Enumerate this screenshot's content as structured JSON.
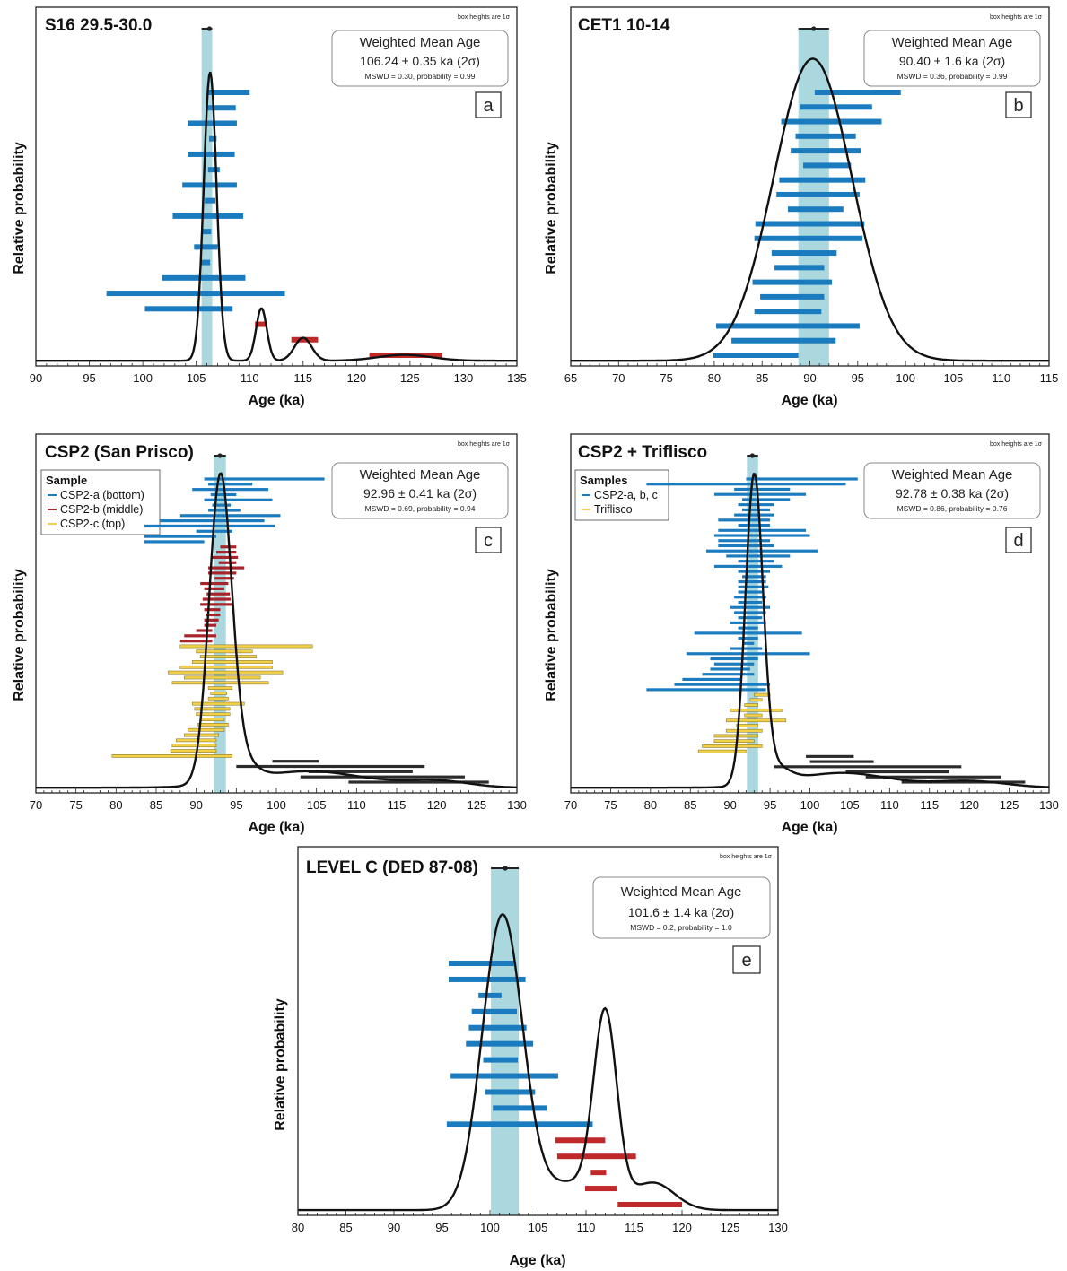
{
  "chart_data": [
    {
      "id": "a",
      "type": "scatter",
      "title": "S16 29.5-30.0",
      "box_note": "box heights are 1σ",
      "xlabel": "Age (ka)",
      "ylabel": "Relative probability",
      "xlim": [
        90,
        135
      ],
      "xticks": [
        90,
        95,
        100,
        105,
        110,
        115,
        120,
        125,
        130,
        135
      ],
      "weighted_mean": {
        "heading": "Weighted Mean Age",
        "value": "106.24 ± 0.35 ka (2σ)",
        "stats": "MSWD = 0.30, probability = 0.99",
        "center": 106.24,
        "band": [
          105.5,
          106.5
        ]
      },
      "panel_label": "a",
      "series": [
        {
          "color": "#1a7bbf",
          "intervals": [
            [
              106.0,
              110.0
            ],
            [
              106.0,
              108.7
            ],
            [
              104.2,
              108.8
            ],
            [
              106.2,
              106.9
            ],
            [
              104.2,
              108.6
            ],
            [
              106.1,
              107.2
            ],
            [
              103.7,
              108.8
            ],
            [
              105.8,
              106.8
            ],
            [
              102.8,
              109.4
            ],
            [
              105.5,
              106.4
            ],
            [
              104.8,
              107.0
            ],
            [
              105.4,
              106.3
            ],
            [
              101.8,
              109.6
            ],
            [
              96.6,
              113.3
            ],
            [
              100.2,
              108.4
            ]
          ]
        },
        {
          "color": "#c0292a",
          "intervals": [
            [
              110.5,
              111.6
            ],
            [
              113.9,
              116.4
            ],
            [
              121.2,
              128.0
            ]
          ]
        }
      ],
      "curve": {
        "baseline": 0.005,
        "peaks": [
          [
            106.3,
            0.6,
            0.88
          ],
          [
            111.1,
            0.5,
            0.16
          ],
          [
            115.0,
            0.8,
            0.07
          ],
          [
            124.5,
            2.5,
            0.018
          ]
        ]
      }
    },
    {
      "id": "b",
      "type": "scatter",
      "title": "CET1 10-14",
      "box_note": "box heights are 1σ",
      "xlabel": "Age (ka)",
      "ylabel": "Relative probability",
      "xlim": [
        65,
        115
      ],
      "xticks": [
        65,
        70,
        75,
        80,
        85,
        90,
        95,
        100,
        105,
        110,
        115
      ],
      "weighted_mean": {
        "heading": "Weighted Mean Age",
        "value": "90.40 ± 1.6 ka (2σ)",
        "stats": "MSWD = 0.36, probability = 0.99",
        "center": 90.4,
        "band": [
          88.8,
          92.0
        ]
      },
      "panel_label": "b",
      "series": [
        {
          "color": "#1a7bbf",
          "intervals": [
            [
              90.5,
              99.5
            ],
            [
              89.0,
              96.5
            ],
            [
              87.0,
              97.5
            ],
            [
              88.5,
              94.8
            ],
            [
              88.0,
              95.3
            ],
            [
              89.3,
              94.3
            ],
            [
              86.8,
              95.8
            ],
            [
              86.5,
              95.2
            ],
            [
              87.7,
              93.5
            ],
            [
              84.3,
              95.7
            ],
            [
              84.2,
              95.5
            ],
            [
              86.0,
              92.8
            ],
            [
              86.3,
              91.5
            ],
            [
              84.0,
              92.3
            ],
            [
              84.8,
              91.5
            ],
            [
              84.2,
              91.2
            ],
            [
              80.2,
              95.2
            ],
            [
              81.8,
              92.7
            ],
            [
              79.9,
              88.8
            ]
          ]
        }
      ],
      "curve": {
        "baseline": 0.005,
        "peaks": [
          [
            90.3,
            4.1,
            0.92
          ]
        ]
      }
    },
    {
      "id": "c",
      "type": "scatter",
      "title": "CSP2 (San Prisco)",
      "box_note": "box heights are 1σ",
      "xlabel": "Age (ka)",
      "ylabel": "Relative probability",
      "xlim": [
        70,
        130
      ],
      "xticks": [
        70,
        75,
        80,
        85,
        90,
        95,
        100,
        105,
        110,
        115,
        120,
        125,
        130
      ],
      "weighted_mean": {
        "heading": "Weighted Mean Age",
        "value": "92.96 ± 0.41 ka (2σ)",
        "stats": "MSWD = 0.69, probability = 0.94",
        "center": 92.96,
        "band": [
          92.2,
          93.7
        ]
      },
      "panel_label": "c",
      "legend": {
        "title": "Sample",
        "items": [
          "CSP2-a (bottom)",
          "CSP2-b (middle)",
          "CSP2-c (top)"
        ]
      },
      "series": [
        {
          "name": "CSP2-a (bottom)",
          "color": "#1a7bbf",
          "intervals": [
            [
              91.0,
              106.0
            ],
            [
              91.5,
              97.0
            ],
            [
              89.5,
              99.0
            ],
            [
              91.8,
              95.0
            ],
            [
              91.0,
              99.5
            ],
            [
              92.0,
              94.3
            ],
            [
              91.5,
              95.5
            ],
            [
              88.0,
              100.5
            ],
            [
              85.5,
              98.5
            ],
            [
              83.5,
              99.8
            ],
            [
              90.0,
              94.5
            ],
            [
              83.5,
              92.5
            ],
            [
              83.5,
              91.0
            ]
          ]
        },
        {
          "name": "CSP2-b (middle)",
          "color": "#a8242a",
          "intervals": [
            [
              93.0,
              95.0
            ],
            [
              92.5,
              95.0
            ],
            [
              92.0,
              95.2
            ],
            [
              92.8,
              95.0
            ],
            [
              91.5,
              96.0
            ],
            [
              91.5,
              95.0
            ],
            [
              92.3,
              94.7
            ],
            [
              90.5,
              94.0
            ],
            [
              91.0,
              93.5
            ],
            [
              91.3,
              94.2
            ],
            [
              90.8,
              94.3
            ],
            [
              90.5,
              94.5
            ],
            [
              91.0,
              93.0
            ],
            [
              91.2,
              93.0
            ],
            [
              91.0,
              92.8
            ],
            [
              91.0,
              92.5
            ],
            [
              90.0,
              92.0
            ],
            [
              88.5,
              92.5
            ],
            [
              88.0,
              92.0
            ]
          ]
        },
        {
          "name": "CSP2-c (top)",
          "color": "#f2d048",
          "intervals": [
            [
              88.0,
              104.5
            ],
            [
              90.0,
              97.0
            ],
            [
              90.5,
              97.5
            ],
            [
              89.5,
              99.5
            ],
            [
              88.0,
              99.5
            ],
            [
              86.5,
              100.8
            ],
            [
              88.5,
              98.0
            ],
            [
              87.0,
              99.0
            ],
            [
              91.5,
              94.5
            ],
            [
              91.8,
              93.8
            ],
            [
              91.5,
              94.0
            ],
            [
              89.5,
              96.0
            ],
            [
              89.8,
              94.2
            ],
            [
              90.0,
              94.2
            ],
            [
              90.5,
              93.5
            ],
            [
              90.2,
              94.0
            ],
            [
              89.0,
              93.5
            ],
            [
              88.5,
              92.8
            ],
            [
              87.5,
              92.5
            ],
            [
              87.0,
              92.5
            ],
            [
              86.8,
              92.5
            ],
            [
              79.5,
              94.5
            ]
          ]
        },
        {
          "name": "",
          "color": "#2b2b2b",
          "intervals": [
            [
              99.5,
              105.3
            ],
            [
              95.0,
              118.5
            ],
            [
              104.0,
              117.0
            ],
            [
              103.0,
              123.5
            ],
            [
              109.0,
              126.5
            ]
          ]
        }
      ],
      "curve": {
        "baseline": 0.005,
        "peaks": [
          [
            93.0,
            1.4,
            0.92
          ],
          [
            95.5,
            1.8,
            0.06
          ],
          [
            104.0,
            7.0,
            0.05
          ],
          [
            120.0,
            4.0,
            0.02
          ]
        ]
      }
    },
    {
      "id": "d",
      "type": "scatter",
      "title": "CSP2 + Triflisco",
      "box_note": "box heights are 1σ",
      "xlabel": "Age (ka)",
      "ylabel": "Relative probability",
      "xlim": [
        70,
        130
      ],
      "xticks": [
        70,
        75,
        80,
        85,
        90,
        95,
        100,
        105,
        110,
        115,
        120,
        125,
        130
      ],
      "weighted_mean": {
        "heading": "Weighted Mean Age",
        "value": "92.78 ± 0.38 ka (2σ)",
        "stats": "MSWD = 0.86, probability = 0.76",
        "center": 92.78,
        "band": [
          92.1,
          93.5
        ]
      },
      "panel_label": "d",
      "legend": {
        "title": "Samples",
        "items": [
          "CSP2-a, b, c",
          "Triflisco"
        ]
      },
      "series": [
        {
          "name": "CSP2-a, b, c",
          "color": "#1a7bbf",
          "intervals": [
            [
              92.0,
              106.0
            ],
            [
              79.5,
              104.5
            ],
            [
              90.5,
              97.5
            ],
            [
              88.0,
              99.5
            ],
            [
              91.5,
              97.5
            ],
            [
              91.0,
              95.5
            ],
            [
              91.5,
              95.0
            ],
            [
              90.5,
              95.5
            ],
            [
              88.5,
              95.0
            ],
            [
              91.0,
              95.0
            ],
            [
              88.5,
              99.5
            ],
            [
              88.0,
              100.0
            ],
            [
              88.5,
              95.0
            ],
            [
              88.5,
              95.5
            ],
            [
              87.0,
              101.0
            ],
            [
              89.5,
              97.5
            ],
            [
              91.0,
              95.5
            ],
            [
              88.0,
              96.5
            ],
            [
              91.0,
              95.0
            ],
            [
              91.5,
              94.5
            ],
            [
              91.0,
              94.5
            ],
            [
              91.0,
              94.8
            ],
            [
              91.0,
              94.0
            ],
            [
              90.5,
              94.5
            ],
            [
              91.0,
              94.0
            ],
            [
              90.0,
              95.0
            ],
            [
              90.5,
              94.5
            ],
            [
              91.0,
              94.0
            ],
            [
              90.0,
              94.5
            ],
            [
              91.0,
              93.5
            ],
            [
              85.5,
              99.0
            ],
            [
              91.0,
              93.5
            ],
            [
              91.5,
              93.0
            ],
            [
              90.0,
              94.0
            ],
            [
              84.5,
              100.0
            ],
            [
              87.5,
              93.5
            ],
            [
              88.0,
              93.0
            ],
            [
              87.5,
              92.5
            ],
            [
              86.5,
              93.0
            ],
            [
              84.0,
              91.5
            ],
            [
              83.0,
              95.0
            ],
            [
              79.5,
              94.5
            ]
          ]
        },
        {
          "name": "Triflisco",
          "color": "#f2d048",
          "intervals": [
            [
              93.0,
              95.0
            ],
            [
              92.5,
              94.0
            ],
            [
              91.8,
              93.5
            ],
            [
              90.0,
              96.5
            ],
            [
              91.8,
              94.0
            ],
            [
              89.5,
              97.0
            ],
            [
              90.8,
              93.5
            ],
            [
              89.5,
              94.0
            ],
            [
              88.0,
              93.5
            ],
            [
              88.0,
              93.0
            ],
            [
              86.5,
              94.0
            ],
            [
              86.0,
              92.0
            ]
          ]
        },
        {
          "name": "",
          "color": "#2b2b2b",
          "intervals": [
            [
              99.5,
              105.5
            ],
            [
              100.0,
              108.0
            ],
            [
              95.5,
              119.0
            ],
            [
              104.5,
              117.5
            ],
            [
              107.0,
              124.0
            ],
            [
              111.5,
              127.0
            ]
          ]
        }
      ],
      "curve": {
        "baseline": 0.005,
        "peaks": [
          [
            93.0,
            1.1,
            0.93
          ],
          [
            95.5,
            1.8,
            0.05
          ],
          [
            104.0,
            6.0,
            0.045
          ],
          [
            120.0,
            4.5,
            0.02
          ]
        ]
      }
    },
    {
      "id": "e",
      "type": "scatter",
      "title": "LEVEL C (DED 87-08)",
      "box_note": "box heights are 1σ",
      "xlabel": "Age (ka)",
      "ylabel": "Relative probability",
      "xlim": [
        80,
        130
      ],
      "xticks": [
        80,
        85,
        90,
        95,
        100,
        105,
        110,
        115,
        120,
        125,
        130
      ],
      "weighted_mean": {
        "heading": "Weighted Mean Age",
        "value": "101.6 ± 1.4 ka (2σ)",
        "stats": "MSWD = 0.2, probability = 1.0",
        "center": 101.6,
        "band": [
          100.1,
          103.0
        ]
      },
      "panel_label": "e",
      "series": [
        {
          "color": "#1a7bbf",
          "intervals": [
            [
              95.7,
              102.5
            ],
            [
              95.7,
              103.7
            ],
            [
              98.8,
              101.2
            ],
            [
              98.1,
              102.8
            ],
            [
              97.8,
              103.8
            ],
            [
              97.5,
              104.5
            ],
            [
              99.3,
              102.9
            ],
            [
              95.9,
              107.1
            ],
            [
              99.5,
              104.7
            ],
            [
              100.3,
              105.9
            ],
            [
              95.5,
              110.7
            ]
          ]
        },
        {
          "color": "#c0292a",
          "intervals": [
            [
              106.8,
              112.0
            ],
            [
              107.0,
              115.2
            ],
            [
              110.5,
              112.1
            ],
            [
              109.9,
              113.2
            ],
            [
              113.3,
              120.0
            ]
          ]
        }
      ],
      "curve": {
        "baseline": 0.005,
        "peaks": [
          [
            101.3,
            2.1,
            0.87
          ],
          [
            112.0,
            1.2,
            0.55
          ],
          [
            108.5,
            3.0,
            0.08
          ],
          [
            117.0,
            2.2,
            0.08
          ]
        ]
      }
    }
  ]
}
